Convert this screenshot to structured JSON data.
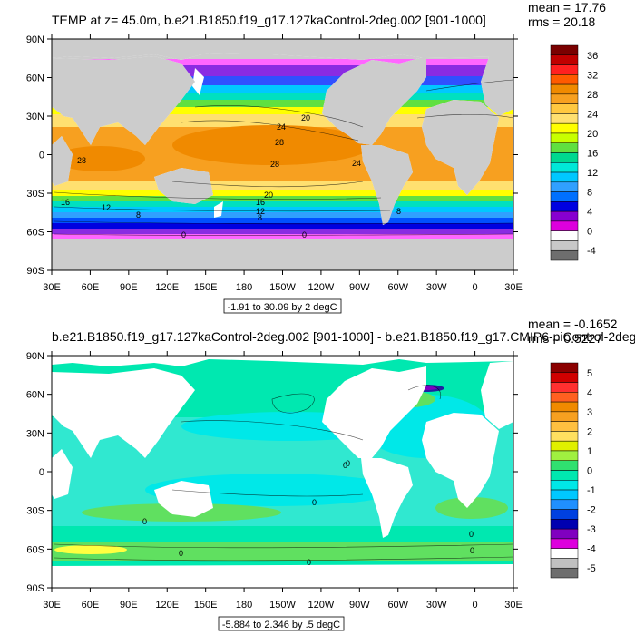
{
  "panels": [
    {
      "title": "TEMP at z=  45.0m, b.e21.B1850.f19_g17.127kaControl-2deg.002 [901-1000]",
      "mean": "mean = 17.76",
      "rms": "rms = 20.18",
      "range_label": "-1.91 to 30.09 by 2 degC",
      "x_ticks": [
        "30E",
        "60E",
        "90E",
        "120E",
        "150E",
        "180",
        "150W",
        "120W",
        "90W",
        "60W",
        "30W",
        "0",
        "30E"
      ],
      "y_ticks": [
        "90N",
        "60N",
        "30N",
        "0",
        "30S",
        "60S",
        "90S"
      ],
      "colorbar": {
        "labels": [
          "36",
          "32",
          "28",
          "24",
          "20",
          "16",
          "12",
          "8",
          "4",
          "0",
          "-4"
        ],
        "colors": [
          "#7a0000",
          "#c00000",
          "#ff2020",
          "#ff5a00",
          "#f08a00",
          "#f7a020",
          "#ffc840",
          "#ffe070",
          "#ffff00",
          "#c8ff00",
          "#60e040",
          "#00d890",
          "#00e8d8",
          "#00c8ff",
          "#30a0ff",
          "#0070ff",
          "#0000e0",
          "#8800d0",
          "#dd00dd",
          "#ffffff",
          "#c8c8c8",
          "#6e6e6e"
        ],
        "land_color": "#cccccc"
      },
      "contour_labels": [
        "20",
        "24",
        "28",
        "28",
        "28",
        "24",
        "16",
        "16",
        "12",
        "12",
        "8",
        "8",
        "8",
        "0",
        "0",
        "20"
      ]
    },
    {
      "title": "b.e21.B1850.f19_g17.127kaControl-2deg.002 [901-1000] - b.e21.B1850.f19_g17.CMIP6-piControl-2deg",
      "mean": "mean = -0.1652",
      "rms": "rms = 0.5227",
      "range_label": "-5.884 to 2.346 by .5 degC",
      "x_ticks": [
        "30E",
        "60E",
        "90E",
        "120E",
        "150E",
        "180",
        "150W",
        "120W",
        "90W",
        "60W",
        "30W",
        "0",
        "30E"
      ],
      "y_ticks": [
        "90N",
        "60N",
        "30N",
        "0",
        "30S",
        "60S",
        "90S"
      ],
      "colorbar": {
        "labels": [
          "5",
          "4",
          "3",
          "2",
          "1",
          "0",
          "-1",
          "-2",
          "-3",
          "-4",
          "-5"
        ],
        "colors": [
          "#8b0000",
          "#d00000",
          "#ff3030",
          "#ff6020",
          "#f08a00",
          "#f7a020",
          "#ffc040",
          "#ffe060",
          "#e0f000",
          "#a0f040",
          "#30e070",
          "#00e8b0",
          "#00e8e8",
          "#00c8ff",
          "#2090ff",
          "#0040e0",
          "#0000b0",
          "#8000c0",
          "#dd00dd",
          "#ffffff",
          "#c0c0c0",
          "#6e6e6e"
        ],
        "land_color": "#ffffff"
      },
      "contour_labels": [
        "0",
        "0",
        "0",
        "0",
        "0",
        "0",
        "0",
        "0"
      ]
    }
  ]
}
